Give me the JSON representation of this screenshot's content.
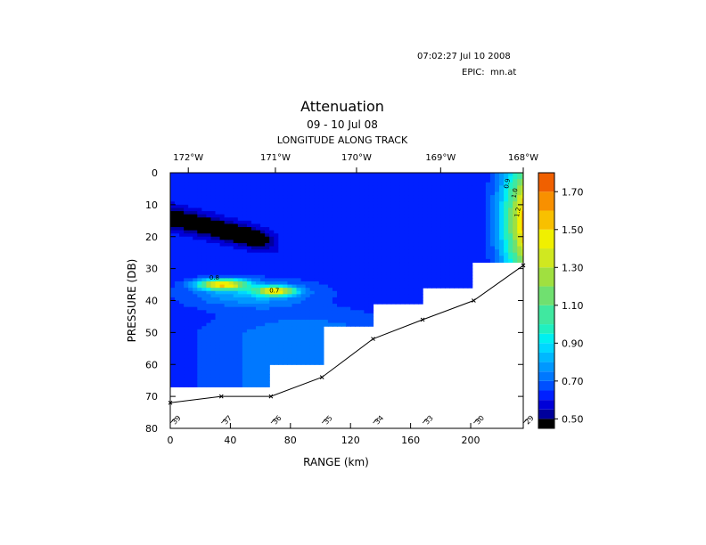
{
  "header": {
    "timestamp": "07:02:27 Jul 10 2008",
    "epic_label": "EPIC:",
    "epic_value": "mn.at"
  },
  "chart_data": {
    "type": "heatmap",
    "title": "Attenuation",
    "subtitle": "09 - 10 Jul 08",
    "top_axis_label": "LONGITUDE ALONG TRACK",
    "top_ticks": [
      {
        "label": "172°W",
        "range_km": 12
      },
      {
        "label": "171°W",
        "range_km": 70
      },
      {
        "label": "170°W",
        "range_km": 124
      },
      {
        "label": "169°W",
        "range_km": 180
      },
      {
        "label": "168°W",
        "range_km": 235
      }
    ],
    "xlabel": "RANGE (km)",
    "ylabel": "PRESSURE (DB)",
    "xlim": [
      0,
      235
    ],
    "ylim": [
      80,
      0
    ],
    "x_ticks": [
      0,
      40,
      80,
      120,
      160,
      200
    ],
    "y_ticks": [
      0,
      10,
      20,
      30,
      40,
      50,
      60,
      70,
      80
    ],
    "colorbar": {
      "range": [
        0.45,
        1.8
      ],
      "tick_labels": [
        "0.50",
        "0.70",
        "0.90",
        "1.10",
        "1.30",
        "1.50",
        "1.70"
      ],
      "tick_values": [
        0.5,
        0.7,
        0.9,
        1.1,
        1.3,
        1.5,
        1.7
      ],
      "levels": [
        0.45,
        0.5,
        0.55,
        0.6,
        0.65,
        0.7,
        0.75,
        0.8,
        0.85,
        0.9,
        0.95,
        1.0,
        1.1,
        1.2,
        1.3,
        1.4,
        1.5,
        1.6,
        1.7,
        1.8
      ],
      "colors": [
        "#000000",
        "#00009c",
        "#0000d8",
        "#0020ff",
        "#0050ff",
        "#0078ff",
        "#0098ff",
        "#00b8ff",
        "#00d8ff",
        "#00f0f0",
        "#20f0c0",
        "#40e8a0",
        "#70e070",
        "#a0e040",
        "#d0e820",
        "#f0f000",
        "#f8c000",
        "#f89000",
        "#f06000",
        "#e03010"
      ]
    },
    "station_track": [
      {
        "range_km": 0,
        "bottom_db": 72,
        "label": "39"
      },
      {
        "range_km": 34,
        "bottom_db": 70,
        "label": "37"
      },
      {
        "range_km": 67,
        "bottom_db": 70,
        "label": "36"
      },
      {
        "range_km": 101,
        "bottom_db": 64,
        "label": "35"
      },
      {
        "range_km": 135,
        "bottom_db": 52,
        "label": "34"
      },
      {
        "range_km": 168,
        "bottom_db": 46,
        "label": "33"
      },
      {
        "range_km": 202,
        "bottom_db": 40,
        "label": "30"
      },
      {
        "range_km": 235,
        "bottom_db": 29,
        "label": "29"
      }
    ],
    "data_depth_db": [
      67,
      67,
      60,
      48,
      41,
      36,
      28
    ],
    "contour_labels": [
      "0.9",
      "1.0",
      "1.2",
      "0.8",
      "0.7"
    ],
    "field_description": {
      "background_value": 0.62,
      "surface_blob_value": 0.6,
      "low_band_value": 0.45,
      "subsurface_peak_value": 1.5,
      "deep_value": 0.75,
      "east_surface_peak_value": 1.6
    }
  }
}
